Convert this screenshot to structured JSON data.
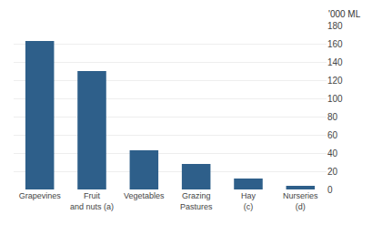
{
  "chart_data": {
    "type": "bar",
    "categories": [
      "Grapevines",
      "Fruit\nand nuts (a)",
      "Vegetables",
      "Grazing\nPastures",
      "Hay\n(c)",
      "Nurseries\n(d)"
    ],
    "values": [
      163,
      130,
      43,
      28,
      12,
      4
    ],
    "color": "#2E5F8A",
    "ylabel": "'000 ML",
    "ylim": [
      0,
      180
    ],
    "yticks": [
      0,
      20,
      40,
      60,
      80,
      100,
      120,
      140,
      160,
      180
    ],
    "grid": true
  }
}
